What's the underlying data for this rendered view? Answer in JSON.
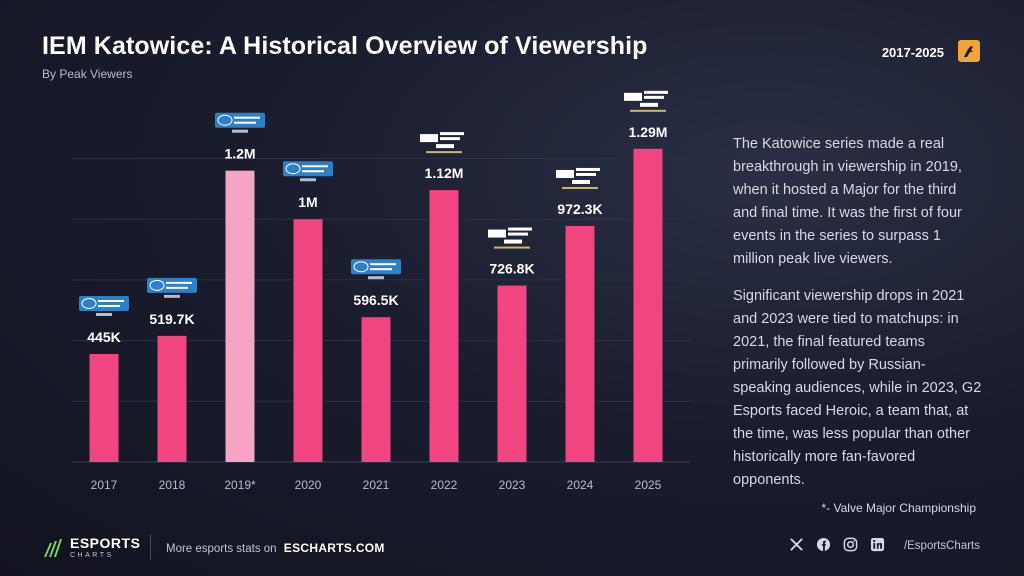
{
  "header": {
    "title": "IEM Katowice: A Historical Overview of Viewership",
    "subtitle": "By Peak Viewers",
    "range": "2017-2025",
    "game_logo_icon": "counter-strike-icon"
  },
  "chart_data": {
    "type": "bar",
    "categories": [
      "2017",
      "2018",
      "2019*",
      "2020",
      "2021",
      "2022",
      "2023",
      "2024",
      "2025"
    ],
    "values": [
      445000,
      519700,
      1200000,
      1000000,
      596500,
      1120000,
      726800,
      972300,
      1290000
    ],
    "data_labels": [
      "445K",
      "519.7K",
      "1.2M",
      "1M",
      "596.5K",
      "1.12M",
      "726.8K",
      "972.3K",
      "1.29M"
    ],
    "highlight_index": 2,
    "ylim": [
      0,
      1450000
    ],
    "grid": true,
    "colors": {
      "bar": "#f0457f",
      "highlight": "#f7a3c3"
    },
    "event_logos": [
      "iem-logo",
      "iem-logo",
      "iem-logo",
      "iem-logo",
      "iem-logo",
      "intel-esl-logo",
      "intel-esl-logo",
      "intel-esl-logo",
      "intel-esl-logo"
    ]
  },
  "description": {
    "p1": "The Katowice series made a real breakthrough in viewership in 2019, when it hosted a Major for the third and final time. It was the first of four events in the series to surpass 1 million peak live viewers.",
    "p2": "Significant viewership drops in 2021 and 2023 were tied to matchups: in 2021, the final featured teams primarily followed by Russian-speaking audiences, while in 2023, G2 Esports faced Heroic, a team that, at the time, was less popular than other historically more fan-favored opponents.",
    "footnote": "*- Valve Major Championship"
  },
  "footer": {
    "brand_name": "ESPORTS",
    "brand_sub": "CHARTS",
    "more_text": "More esports stats on",
    "site": "ESCHARTS.COM",
    "socials": [
      "x-icon",
      "facebook-icon",
      "instagram-icon",
      "linkedin-icon"
    ],
    "handle": "/EsportsCharts"
  }
}
